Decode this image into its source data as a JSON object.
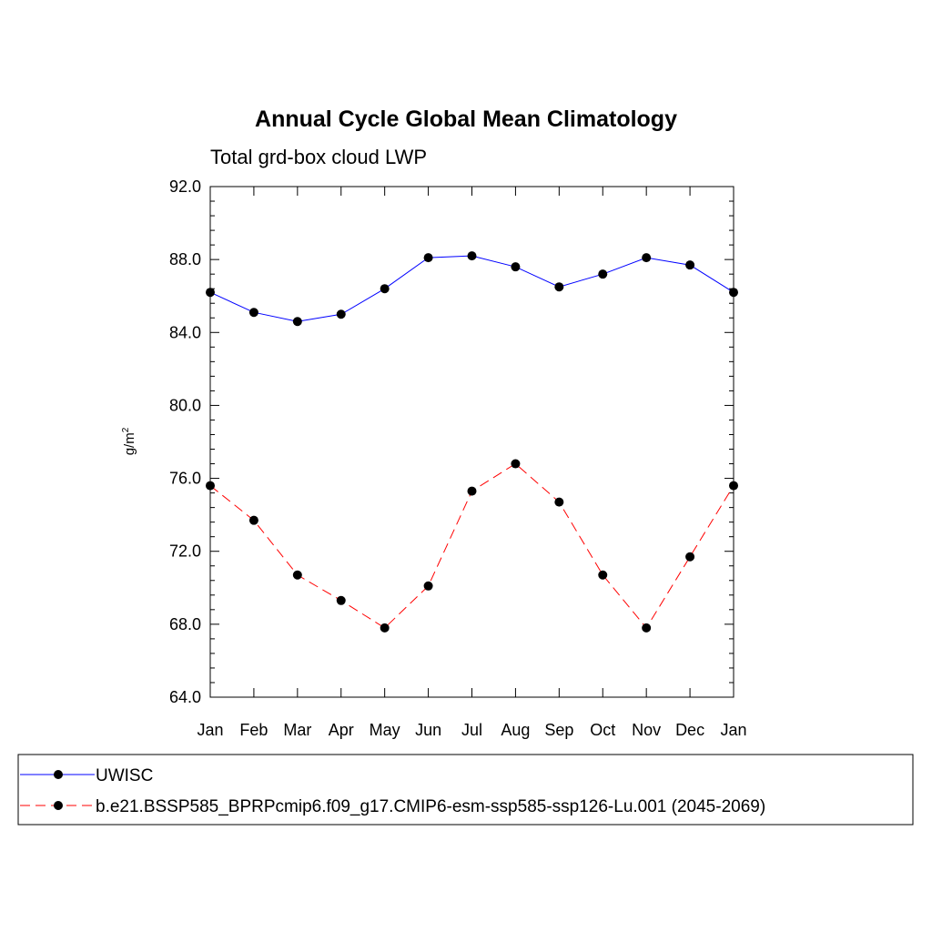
{
  "chart_data": {
    "type": "line",
    "title": "Annual Cycle Global Mean Climatology",
    "subtitle": "Total grd-box cloud LWP",
    "ylabel": "g/m",
    "ylabel_sup": "2",
    "ylim": [
      64,
      92
    ],
    "yticks": [
      "64.0",
      "68.0",
      "72.0",
      "76.0",
      "80.0",
      "84.0",
      "88.0",
      "92.0"
    ],
    "ytick_values": [
      64,
      68,
      72,
      76,
      80,
      84,
      88,
      92
    ],
    "categories": [
      "Jan",
      "Feb",
      "Mar",
      "Apr",
      "May",
      "Jun",
      "Jul",
      "Aug",
      "Sep",
      "Oct",
      "Nov",
      "Dec",
      "Jan"
    ],
    "grid": false,
    "legend_placement": "bottom",
    "series": [
      {
        "name": "UWISC",
        "color": "#0000ff",
        "style": "solid",
        "values": [
          86.2,
          85.1,
          84.6,
          85.0,
          86.4,
          88.1,
          88.2,
          87.6,
          86.5,
          87.2,
          88.1,
          87.7,
          86.2
        ]
      },
      {
        "name": "b.e21.BSSP585_BPRPcmip6.f09_g17.CMIP6-esm-ssp585-ssp126-Lu.001 (2045-2069)",
        "color": "#ff0000",
        "style": "dashed",
        "values": [
          75.6,
          73.7,
          70.7,
          69.3,
          67.8,
          70.1,
          75.3,
          76.8,
          74.7,
          70.7,
          67.8,
          71.7,
          75.6
        ]
      }
    ]
  }
}
